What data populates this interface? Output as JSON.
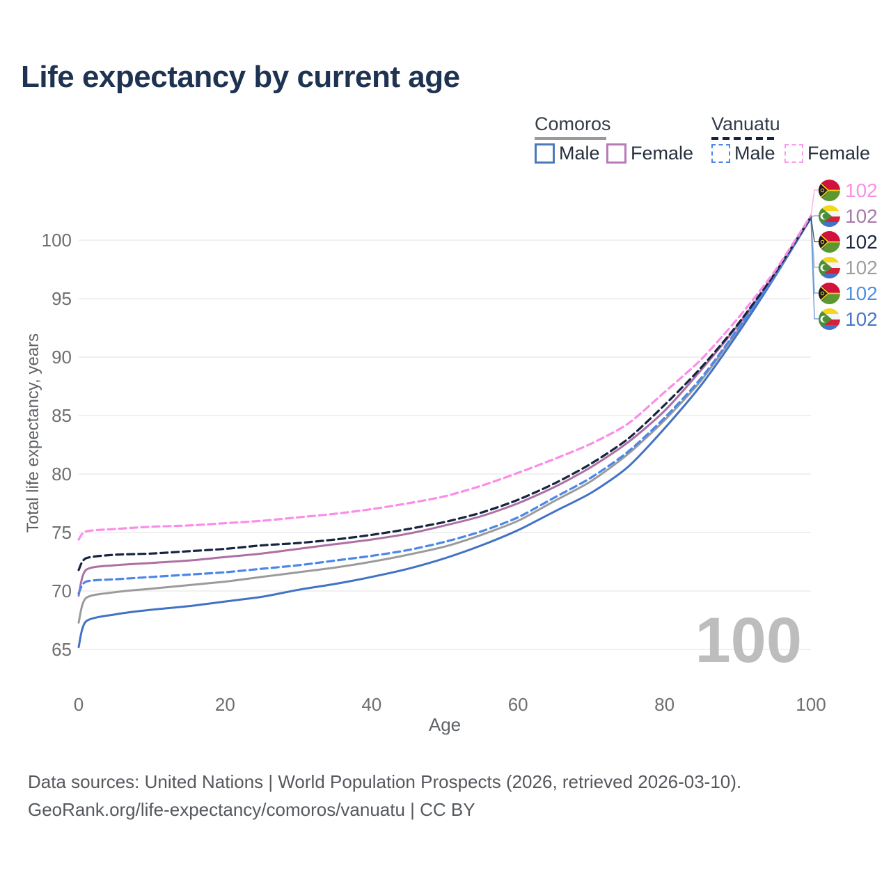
{
  "title": "Life expectancy by current age",
  "watermark": "100",
  "legend": {
    "groups": [
      {
        "label": "Comoros",
        "line_style": "solid",
        "underline_color": "#9a9a9a",
        "items": [
          {
            "label": "Male",
            "color": "#4272c4",
            "dashed": false
          },
          {
            "label": "Female",
            "color": "#ad6fa4",
            "dashed": false
          }
        ]
      },
      {
        "label": "Vanuatu",
        "line_style": "dashed",
        "underline_color": "#16243f",
        "items": [
          {
            "label": "Male",
            "color": "#4b87e8",
            "dashed": true
          },
          {
            "label": "Female",
            "color": "#fb8de8",
            "dashed": true
          }
        ]
      }
    ]
  },
  "footer": {
    "line1": "Data sources: United Nations | World Population Prospects (2026, retrieved 2026-03-10).",
    "line2": "GeoRank.org/life-expectancy/comoros/vanuatu | CC BY"
  },
  "chart_data": {
    "type": "line",
    "title": "Life expectancy by current age",
    "xlabel": "Age",
    "ylabel": "Total life expectancy, years",
    "xlim": [
      0,
      100
    ],
    "ylim": [
      65,
      103
    ],
    "x_ticks": [
      0,
      20,
      40,
      60,
      80,
      100
    ],
    "y_ticks": [
      65,
      70,
      75,
      80,
      85,
      90,
      95,
      100
    ],
    "grid": "horizontal",
    "gridline_color": "#e7e7e7",
    "legend_position": "top-right",
    "x": [
      0,
      1,
      5,
      10,
      15,
      20,
      25,
      30,
      35,
      40,
      45,
      50,
      55,
      60,
      65,
      70,
      75,
      80,
      85,
      90,
      95,
      100
    ],
    "series": [
      {
        "name": "Comoros both sexes",
        "country": "comoros",
        "sex": "both",
        "color": "#9b9b9b",
        "dashed": false,
        "width": 3,
        "end_label": "102",
        "end_label_color": "#9e9e9e",
        "end_row": 3,
        "values": [
          67.3,
          69.4,
          69.9,
          70.2,
          70.5,
          70.8,
          71.2,
          71.6,
          72.0,
          72.5,
          73.1,
          73.8,
          74.8,
          76.0,
          77.7,
          79.4,
          81.7,
          84.6,
          88.0,
          92.3,
          96.9,
          101.9
        ]
      },
      {
        "name": "Comoros Male",
        "country": "comoros",
        "sex": "male",
        "color": "#4272c4",
        "dashed": false,
        "width": 3,
        "end_label": "102",
        "end_label_color": "#4779c4",
        "end_row": 5,
        "values": [
          65.2,
          67.4,
          68.0,
          68.4,
          68.7,
          69.1,
          69.5,
          70.1,
          70.6,
          71.2,
          71.9,
          72.8,
          73.9,
          75.2,
          76.8,
          78.4,
          80.6,
          83.9,
          87.6,
          92.0,
          96.8,
          101.9
        ]
      },
      {
        "name": "Comoros Female",
        "country": "comoros",
        "sex": "female",
        "color": "#ad6fa4",
        "dashed": false,
        "width": 3,
        "end_label": "102",
        "end_label_color": "#a87ca8",
        "end_row": 1,
        "values": [
          69.6,
          71.8,
          72.2,
          72.4,
          72.6,
          72.9,
          73.2,
          73.6,
          74.0,
          74.4,
          74.9,
          75.6,
          76.4,
          77.5,
          78.9,
          80.6,
          82.7,
          85.4,
          88.9,
          92.7,
          97.0,
          102.0
        ]
      },
      {
        "name": "Vanuatu Male",
        "country": "vanuatu",
        "sex": "male",
        "color": "#4b87e8",
        "dashed": true,
        "width": 3.2,
        "end_label": "102",
        "end_label_color": "#4a90e2",
        "end_row": 4,
        "values": [
          69.8,
          70.8,
          71.0,
          71.2,
          71.4,
          71.6,
          71.9,
          72.2,
          72.6,
          73.0,
          73.5,
          74.2,
          75.1,
          76.3,
          78.0,
          79.7,
          81.9,
          84.8,
          88.2,
          92.4,
          96.9,
          102.0
        ]
      },
      {
        "name": "Vanuatu both sexes",
        "country": "vanuatu",
        "sex": "both",
        "color": "#16243f",
        "dashed": true,
        "width": 3.2,
        "end_label": "102",
        "end_label_color": "#1b2740",
        "end_row": 2,
        "values": [
          71.8,
          72.8,
          73.1,
          73.2,
          73.4,
          73.6,
          73.9,
          74.1,
          74.4,
          74.8,
          75.3,
          75.9,
          76.7,
          77.8,
          79.2,
          80.9,
          83.0,
          85.9,
          89.1,
          92.8,
          97.1,
          102.0
        ]
      },
      {
        "name": "Vanuatu Female",
        "country": "vanuatu",
        "sex": "female",
        "color": "#fb8de8",
        "dashed": true,
        "width": 3.2,
        "end_label": "102",
        "end_label_color": "#f98fe5",
        "end_row": 0,
        "values": [
          74.4,
          75.1,
          75.3,
          75.5,
          75.6,
          75.8,
          76.0,
          76.3,
          76.6,
          77.0,
          77.5,
          78.1,
          79.0,
          80.1,
          81.3,
          82.6,
          84.3,
          87.0,
          89.8,
          93.3,
          97.3,
          102.1
        ]
      }
    ]
  }
}
